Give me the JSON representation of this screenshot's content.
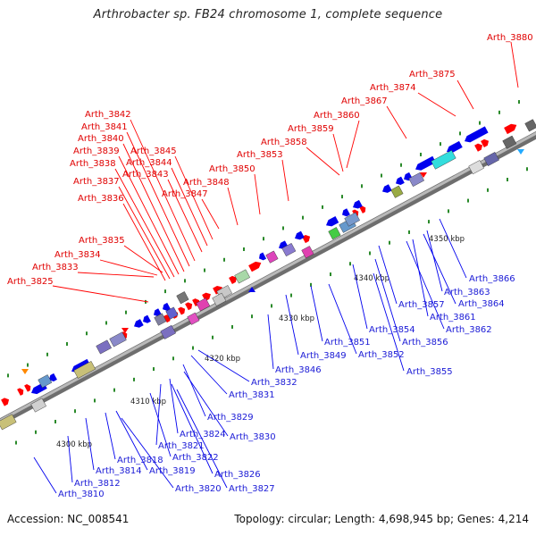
{
  "title": "Arthrobacter sp. FB24 chromosome 1, complete sequence",
  "footer": {
    "accession": "Accession: NC_008541",
    "topology": "Topology: circular; Length: 4,698,945 bp; Genes: 4,214"
  },
  "colors": {
    "forward": "#ff0000",
    "reverse": "#0000ee",
    "backbone": "#8a8a8a",
    "label_forward": "#e00000",
    "label_reverse": "#1a1ad6"
  },
  "kbp_labels": [
    "4300 kbp",
    "4310 kbp",
    "4320 kbp",
    "4330 kbp",
    "4340 kbp",
    "4350 kbp"
  ],
  "forward_genes": [
    "Arth_3880",
    "Arth_3875",
    "Arth_3874",
    "Arth_3867",
    "Arth_3860",
    "Arth_3859",
    "Arth_3858",
    "Arth_3853",
    "Arth_3850",
    "Arth_3848",
    "Arth_3847",
    "Arth_3845",
    "Arth_3844",
    "Arth_3843",
    "Arth_3842",
    "Arth_3841",
    "Arth_3840",
    "Arth_3839",
    "Arth_3838",
    "Arth_3837",
    "Arth_3836",
    "Arth_3835",
    "Arth_3834",
    "Arth_3833",
    "Arth_3825"
  ],
  "reverse_genes": [
    "Arth_3866",
    "Arth_3863",
    "Arth_3864",
    "Arth_3861",
    "Arth_3862",
    "Arth_3857",
    "Arth_3854",
    "Arth_3856",
    "Arth_3855",
    "Arth_3851",
    "Arth_3852",
    "Arth_3849",
    "Arth_3846",
    "Arth_3832",
    "Arth_3831",
    "Arth_3829",
    "Arth_3830",
    "Arth_3824",
    "Arth_3821",
    "Arth_3822",
    "Arth_3818",
    "Arth_3819",
    "Arth_3826",
    "Arth_3814",
    "Arth_3827",
    "Arth_3820",
    "Arth_3812",
    "Arth_3810"
  ]
}
